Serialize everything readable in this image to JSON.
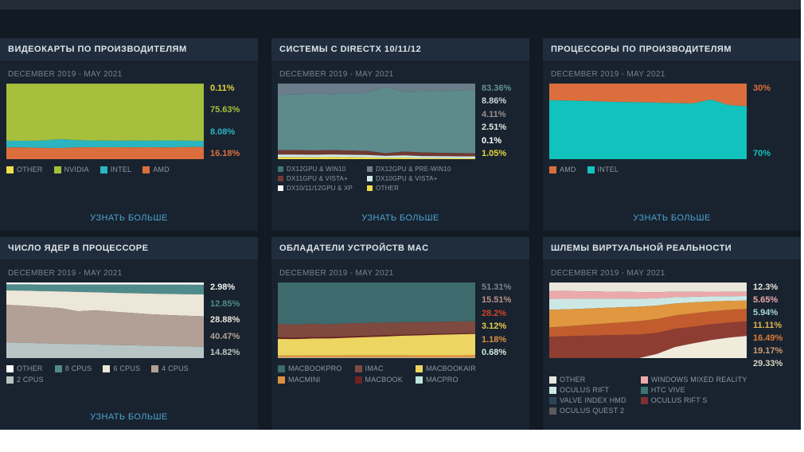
{
  "theme": {
    "page_bg": "#121a23",
    "panel_bg": "#18232f",
    "header_bg": "#202d3c",
    "link_color": "#4da3d0"
  },
  "chart_data": [
    {
      "id": "gpu-manufacturers",
      "type": "area",
      "stacked": true,
      "title": "ВИДЕОКАРТЫ ПО ПРОИЗВОДИТЕЛЯМ",
      "period": "DECEMBER 2019 - MAY 2021",
      "more_label": "УЗНАТЬ БОЛЬШЕ",
      "x_range": [
        "DECEMBER 2019",
        "MAY 2021"
      ],
      "ylim": [
        0,
        100
      ],
      "unit": "%",
      "series": [
        {
          "name": "OTHER",
          "color": "#f0dd4a",
          "current": "0.11%",
          "values": [
            0.2,
            0.2,
            0.2,
            0.2,
            0.2,
            0.2,
            0.2,
            0.2,
            0.2,
            0.15,
            0.12,
            0.11
          ]
        },
        {
          "name": "NVIDIA",
          "color": "#a6bf3c",
          "current": "75.63%",
          "values": [
            75.5,
            75.6,
            75.3,
            73.4,
            74.8,
            75.2,
            75.4,
            75.3,
            75.5,
            75.1,
            75.5,
            75.63
          ]
        },
        {
          "name": "INTEL",
          "color": "#2ab5c0",
          "current": "8.08%",
          "values": [
            8.8,
            8.7,
            9.6,
            11.6,
            9.3,
            8.8,
            8.6,
            8.8,
            8.5,
            9.2,
            8.3,
            8.08
          ]
        },
        {
          "name": "AMD",
          "color": "#dc6e3e",
          "current": "16.18%",
          "values": [
            15.5,
            15.5,
            14.9,
            14.8,
            15.7,
            15.8,
            15.8,
            15.7,
            15.8,
            15.55,
            16.08,
            16.18
          ]
        }
      ],
      "value_labels": [
        {
          "text": "0.11%",
          "color": "#e6d23e"
        },
        {
          "text": "75.63%",
          "color": "#a6bf3c"
        },
        {
          "text": "8.08%",
          "color": "#2ab5c0"
        },
        {
          "text": "16.18%",
          "color": "#dc6e3e"
        }
      ],
      "legend": [
        {
          "label": "OTHER",
          "color": "#f0dd4a"
        },
        {
          "label": "NVIDIA",
          "color": "#a6bf3c"
        },
        {
          "label": "INTEL",
          "color": "#2ab5c0"
        },
        {
          "label": "AMD",
          "color": "#dc6e3e"
        }
      ]
    },
    {
      "id": "directx-systems",
      "type": "area",
      "stacked": true,
      "title": "СИСТЕМЫ С DIRECTX 10/11/12",
      "period": "DECEMBER 2019 - MAY 2021",
      "more_label": "УЗНАТЬ БОЛЬШЕ",
      "x_range": [
        "DECEMBER 2019",
        "MAY 2021"
      ],
      "ylim": [
        0,
        100
      ],
      "unit": "%",
      "series": [
        {
          "name": "DX12GPU & PRE-WIN10",
          "color": "#6b7d8a",
          "current": "8.86%",
          "values": [
            15,
            14.5,
            13.2,
            14,
            13,
            12,
            4,
            11,
            10.5,
            10,
            9.3,
            8.86
          ]
        },
        {
          "name": "DX12GPU & WIN10",
          "color": "#5d8b8c",
          "current": "83.36%",
          "values": [
            73,
            73.5,
            75.2,
            74,
            75.6,
            77.1,
            88.2,
            79,
            80.6,
            81.6,
            82.7,
            83.36
          ]
        },
        {
          "name": "DX11GPU & VISTA+",
          "color": "#713a33",
          "current": "4.11%",
          "values": [
            6,
            6,
            5.8,
            5.8,
            5.6,
            5.4,
            3.5,
            5,
            4.8,
            4.5,
            4.3,
            4.11
          ]
        },
        {
          "name": "DX10GPU & VISTA+",
          "color": "#cfe9e6",
          "current": "2.51%",
          "values": [
            3.2,
            3.2,
            3.1,
            3.1,
            3,
            2.9,
            2.5,
            2.8,
            2.7,
            2.6,
            2.55,
            2.51
          ]
        },
        {
          "name": "DX10/11/12GPU & XP",
          "color": "#ffffff",
          "current": "0.1%",
          "values": [
            0.3,
            0.3,
            0.3,
            0.25,
            0.25,
            0.2,
            0.15,
            0.15,
            0.12,
            0.1,
            0.1,
            0.1
          ]
        },
        {
          "name": "OTHER",
          "color": "#f0dd4a",
          "current": "1.05%",
          "values": [
            2.5,
            2.5,
            2.4,
            2.85,
            2.55,
            2.4,
            1.65,
            2.05,
            1.28,
            1.2,
            1.05,
            1.05
          ]
        }
      ],
      "value_labels": [
        {
          "text": "83.36%",
          "color": "#639192"
        },
        {
          "text": "8.86%",
          "color": "#c9d3da"
        },
        {
          "text": "4.11%",
          "color": "#9b8f8f"
        },
        {
          "text": "2.51%",
          "color": "#d8e6e3"
        },
        {
          "text": "0.1%",
          "color": "#ffffff"
        },
        {
          "text": "1.05%",
          "color": "#e6d23e"
        }
      ],
      "legend": [
        {
          "label": "DX12GPU & WIN10",
          "color": "#3f7475"
        },
        {
          "label": "DX12GPU & PRE-WIN10",
          "color": "#6b7d8a"
        },
        {
          "label": "DX11GPU & VISTA+",
          "color": "#713a33"
        },
        {
          "label": "DX10GPU & VISTA+",
          "color": "#cfe9e6"
        },
        {
          "label": "DX10/11/12GPU & XP",
          "color": "#ffffff"
        },
        {
          "label": "OTHER",
          "color": "#f0dd4a"
        }
      ]
    },
    {
      "id": "cpu-manufacturers",
      "type": "area",
      "stacked": true,
      "title": "ПРОЦЕССОРЫ ПО ПРОИЗВОДИТЕЛЯМ",
      "period": "DECEMBER 2019 - MAY 2021",
      "more_label": "УЗНАТЬ БОЛЬШЕ",
      "x_range": [
        "DECEMBER 2019",
        "MAY 2021"
      ],
      "ylim": [
        0,
        100
      ],
      "unit": "%",
      "series": [
        {
          "name": "AMD",
          "color": "#dc6e3e",
          "current": "30%",
          "values": [
            22,
            22.5,
            23,
            23.8,
            24.3,
            24.8,
            25.3,
            25.8,
            26.3,
            21,
            28.5,
            30
          ]
        },
        {
          "name": "INTEL",
          "color": "#12c2bd",
          "current": "70%",
          "values": [
            78,
            77.5,
            77,
            76.2,
            75.7,
            75.2,
            74.7,
            74.2,
            73.7,
            79,
            71.5,
            70
          ]
        }
      ],
      "value_labels": [
        {
          "text": "30%",
          "color": "#dc6e3e"
        },
        {
          "text": "70%",
          "color": "#12c2bd"
        }
      ],
      "legend": [
        {
          "label": "AMD",
          "color": "#dc6e3e"
        },
        {
          "label": "INTEL",
          "color": "#12c2bd"
        }
      ]
    },
    {
      "id": "cpu-cores",
      "type": "area",
      "stacked": true,
      "title": "ЧИСЛО ЯДЕР В ПРОЦЕССОРЕ",
      "period": "DECEMBER 2019 - MAY 2021",
      "more_label": "УЗНАТЬ БОЛЬШЕ",
      "x_range": [
        "DECEMBER 2019",
        "MAY 2021"
      ],
      "ylim": [
        0,
        100
      ],
      "unit": "%",
      "series": [
        {
          "name": "OTHER",
          "color": "#ffffff",
          "current": "2.98%",
          "values": [
            2.5,
            2.5,
            2.6,
            2.6,
            2.7,
            2.7,
            2.8,
            2.8,
            2.9,
            2.9,
            2.95,
            2.98
          ]
        },
        {
          "name": "8 CPUS",
          "color": "#4f8b8b",
          "current": "12.85%",
          "values": [
            8,
            8.3,
            8.8,
            9.2,
            9.7,
            10.2,
            10.8,
            11.3,
            11.8,
            12.2,
            12.6,
            12.85
          ]
        },
        {
          "name": "6 CPUS",
          "color": "#ece7d9",
          "current": "28.88%",
          "values": [
            19,
            19.8,
            21,
            22,
            25.5,
            23.5,
            25,
            26,
            27,
            27.8,
            28.4,
            28.88
          ]
        },
        {
          "name": "4 CPUS",
          "color": "#b2a096",
          "current": "40.47%",
          "values": [
            50,
            49.2,
            48,
            47.2,
            43,
            45,
            44,
            42.6,
            41.5,
            41,
            40.7,
            40.47
          ]
        },
        {
          "name": "2 CPUS",
          "color": "#b7c6c5",
          "current": "14.82%",
          "values": [
            20.5,
            20.2,
            19.6,
            19,
            18.6,
            17.9,
            17.2,
            16.9,
            16.3,
            15.9,
            15.35,
            14.82
          ]
        }
      ],
      "value_labels": [
        {
          "text": "2.98%",
          "color": "#f2f2f2"
        },
        {
          "text": "12.85%",
          "color": "#4f8b8b"
        },
        {
          "text": "28.88%",
          "color": "#ece7d9"
        },
        {
          "text": "40.47%",
          "color": "#b2a096"
        },
        {
          "text": "14.82%",
          "color": "#b7c6c5"
        }
      ],
      "legend": [
        {
          "label": "OTHER",
          "color": "#ffffff"
        },
        {
          "label": "8 CPUS",
          "color": "#4f8b8b"
        },
        {
          "label": "6 CPUS",
          "color": "#ece7d9"
        },
        {
          "label": "4 CPUS",
          "color": "#b2a096"
        },
        {
          "label": "2 CPUS",
          "color": "#b7c6c5"
        }
      ]
    },
    {
      "id": "mac-devices",
      "type": "area",
      "stacked": true,
      "title": "ОБЛАДАТЕЛИ УСТРОЙСТВ MAC",
      "period": "DECEMBER 2019 - MAY 2021",
      "more_label": null,
      "x_range": [
        "DECEMBER 2019",
        "MAY 2021"
      ],
      "ylim": [
        0,
        100
      ],
      "unit": "%",
      "series": [
        {
          "name": "MACBOOKPRO",
          "color": "#3d6b6e",
          "current": "51.31%",
          "values": [
            55,
            55.5,
            54.5,
            55,
            54,
            53.5,
            53,
            52.5,
            52.5,
            52,
            51.6,
            51.31
          ]
        },
        {
          "name": "IMAC",
          "color": "#7e4a40",
          "current": "15.51%",
          "values": [
            17.5,
            17.3,
            17.5,
            17,
            17.2,
            17,
            16.8,
            16.5,
            16.2,
            15.9,
            15.7,
            15.51
          ]
        },
        {
          "name": "MACBOOK",
          "color": "#6e2222",
          "current": "1.18%",
          "values": [
            2.2,
            2.1,
            2,
            1.9,
            1.8,
            1.7,
            1.6,
            1.5,
            1.4,
            1.3,
            1.25,
            1.18
          ]
        },
        {
          "name": "MACBOOKAIR",
          "color": "#ecd561",
          "current": "28.2%",
          "values": [
            22,
            21.8,
            22.5,
            22.8,
            23.5,
            24.3,
            25,
            26,
            26.5,
            27.3,
            27.8,
            28.2
          ]
        },
        {
          "name": "MACMINI",
          "color": "#df8f41",
          "current": "3.12%",
          "values": [
            2.6,
            2.6,
            2.7,
            2.6,
            2.8,
            2.8,
            2.9,
            2.9,
            3,
            3,
            3.05,
            3.12
          ]
        },
        {
          "name": "MACPRO",
          "color": "#bfe5dc",
          "current": "0.68%",
          "values": [
            0.7,
            0.7,
            0.7,
            0.7,
            0.7,
            0.7,
            0.7,
            0.7,
            0.68,
            0.68,
            0.68,
            0.68
          ]
        }
      ],
      "value_labels": [
        {
          "text": "51.31%",
          "color": "#76858d"
        },
        {
          "text": "15.51%",
          "color": "#bd9188"
        },
        {
          "text": "28.2%",
          "color": "#cf4426"
        },
        {
          "text": "3.12%",
          "color": "#e9cb4a"
        },
        {
          "text": "1.18%",
          "color": "#df8f41"
        },
        {
          "text": "0.68%",
          "color": "#cfe8e0"
        }
      ],
      "legend": [
        {
          "label": "MACBOOKPRO",
          "color": "#3d6b6e"
        },
        {
          "label": "IMAC",
          "color": "#7e4a40"
        },
        {
          "label": "MACBOOKAIR",
          "color": "#ecd561"
        },
        {
          "label": "MACMINI",
          "color": "#df8f41"
        },
        {
          "label": "MACBOOK",
          "color": "#6e2222"
        },
        {
          "label": "MACPRO",
          "color": "#bfe5dc"
        }
      ]
    },
    {
      "id": "vr-headsets",
      "type": "area",
      "stacked": true,
      "title": "ШЛЕМЫ ВИРТУАЛЬНОЙ РЕАЛЬНОСТИ",
      "period": "DECEMBER 2019 - MAY 2021",
      "more_label": null,
      "x_range": [
        "DECEMBER 2019",
        "MAY 2021"
      ],
      "ylim": [
        0,
        100
      ],
      "unit": "%",
      "series": [
        {
          "name": "OTHER",
          "color": "#e9e6dc",
          "current": "12.3%",
          "values": [
            10,
            10.2,
            10.5,
            10.8,
            11,
            11.2,
            11.5,
            11.7,
            11.9,
            12,
            12.2,
            12.3
          ]
        },
        {
          "name": "WINDOWS MIXED REALITY",
          "color": "#eca9ab",
          "current": "5.65%",
          "values": [
            9.5,
            9.2,
            8.8,
            8.5,
            8.2,
            7.8,
            7.4,
            7,
            6.6,
            6.2,
            5.9,
            5.65
          ]
        },
        {
          "name": "OCULUS RIFT",
          "color": "#cde8e4",
          "current": "5.94%",
          "values": [
            13,
            12.5,
            11.8,
            11,
            10.2,
            9.4,
            8.6,
            7.9,
            7.2,
            6.6,
            6.2,
            5.94
          ]
        },
        {
          "name": "HTC VIVE",
          "color": "#e0973f",
          "current": "11.11%",
          "values": [
            21,
            20.3,
            19.5,
            18.8,
            18,
            17.2,
            16.2,
            15.2,
            14.2,
            13,
            12,
            11.11
          ]
        },
        {
          "name": "VALVE INDEX HMD",
          "color": "#c25c2e",
          "current": "16.49%",
          "values": [
            11,
            11.8,
            12.8,
            13.8,
            14.8,
            15.8,
            16.5,
            17,
            17.2,
            17,
            16.7,
            16.49
          ]
        },
        {
          "name": "OCULUS RIFT S",
          "color": "#8e3d33",
          "current": "19.17%",
          "values": [
            25.5,
            26,
            26.6,
            27.1,
            27.4,
            27.6,
            25,
            23,
            21.5,
            20.6,
            19.8,
            19.17
          ]
        },
        {
          "name": "OCULUS QUEST 2",
          "color": "#f0ebdb",
          "current": "29.33%",
          "values": [
            0,
            0,
            0,
            0,
            0,
            0,
            5,
            14,
            19,
            23.5,
            27,
            29.33
          ]
        }
      ],
      "value_labels": [
        {
          "text": "12.3%",
          "color": "#e7e4da"
        },
        {
          "text": "5.65%",
          "color": "#eaa9ab"
        },
        {
          "text": "5.94%",
          "color": "#a8d8d2"
        },
        {
          "text": "11.11%",
          "color": "#e0b353"
        },
        {
          "text": "16.49%",
          "color": "#df7b36"
        },
        {
          "text": "19.17%",
          "color": "#cf9a74"
        },
        {
          "text": "29.33%",
          "color": "#d9d3c0"
        }
      ],
      "legend": [
        {
          "label": "OTHER",
          "color": "#e9e6dc"
        },
        {
          "label": "WINDOWS MIXED REALITY",
          "color": "#eca9ab"
        },
        {
          "label": "OCULUS RIFT",
          "color": "#cde8e4"
        },
        {
          "label": "HTC VIVE",
          "color": "#3f7475"
        },
        {
          "label": "VALVE INDEX HMD",
          "color": "#2e4356"
        },
        {
          "label": "OCULUS RIFT S",
          "color": "#7e3030"
        },
        {
          "label": "OCULUS QUEST 2",
          "color": "#5a5a5a"
        }
      ]
    }
  ]
}
